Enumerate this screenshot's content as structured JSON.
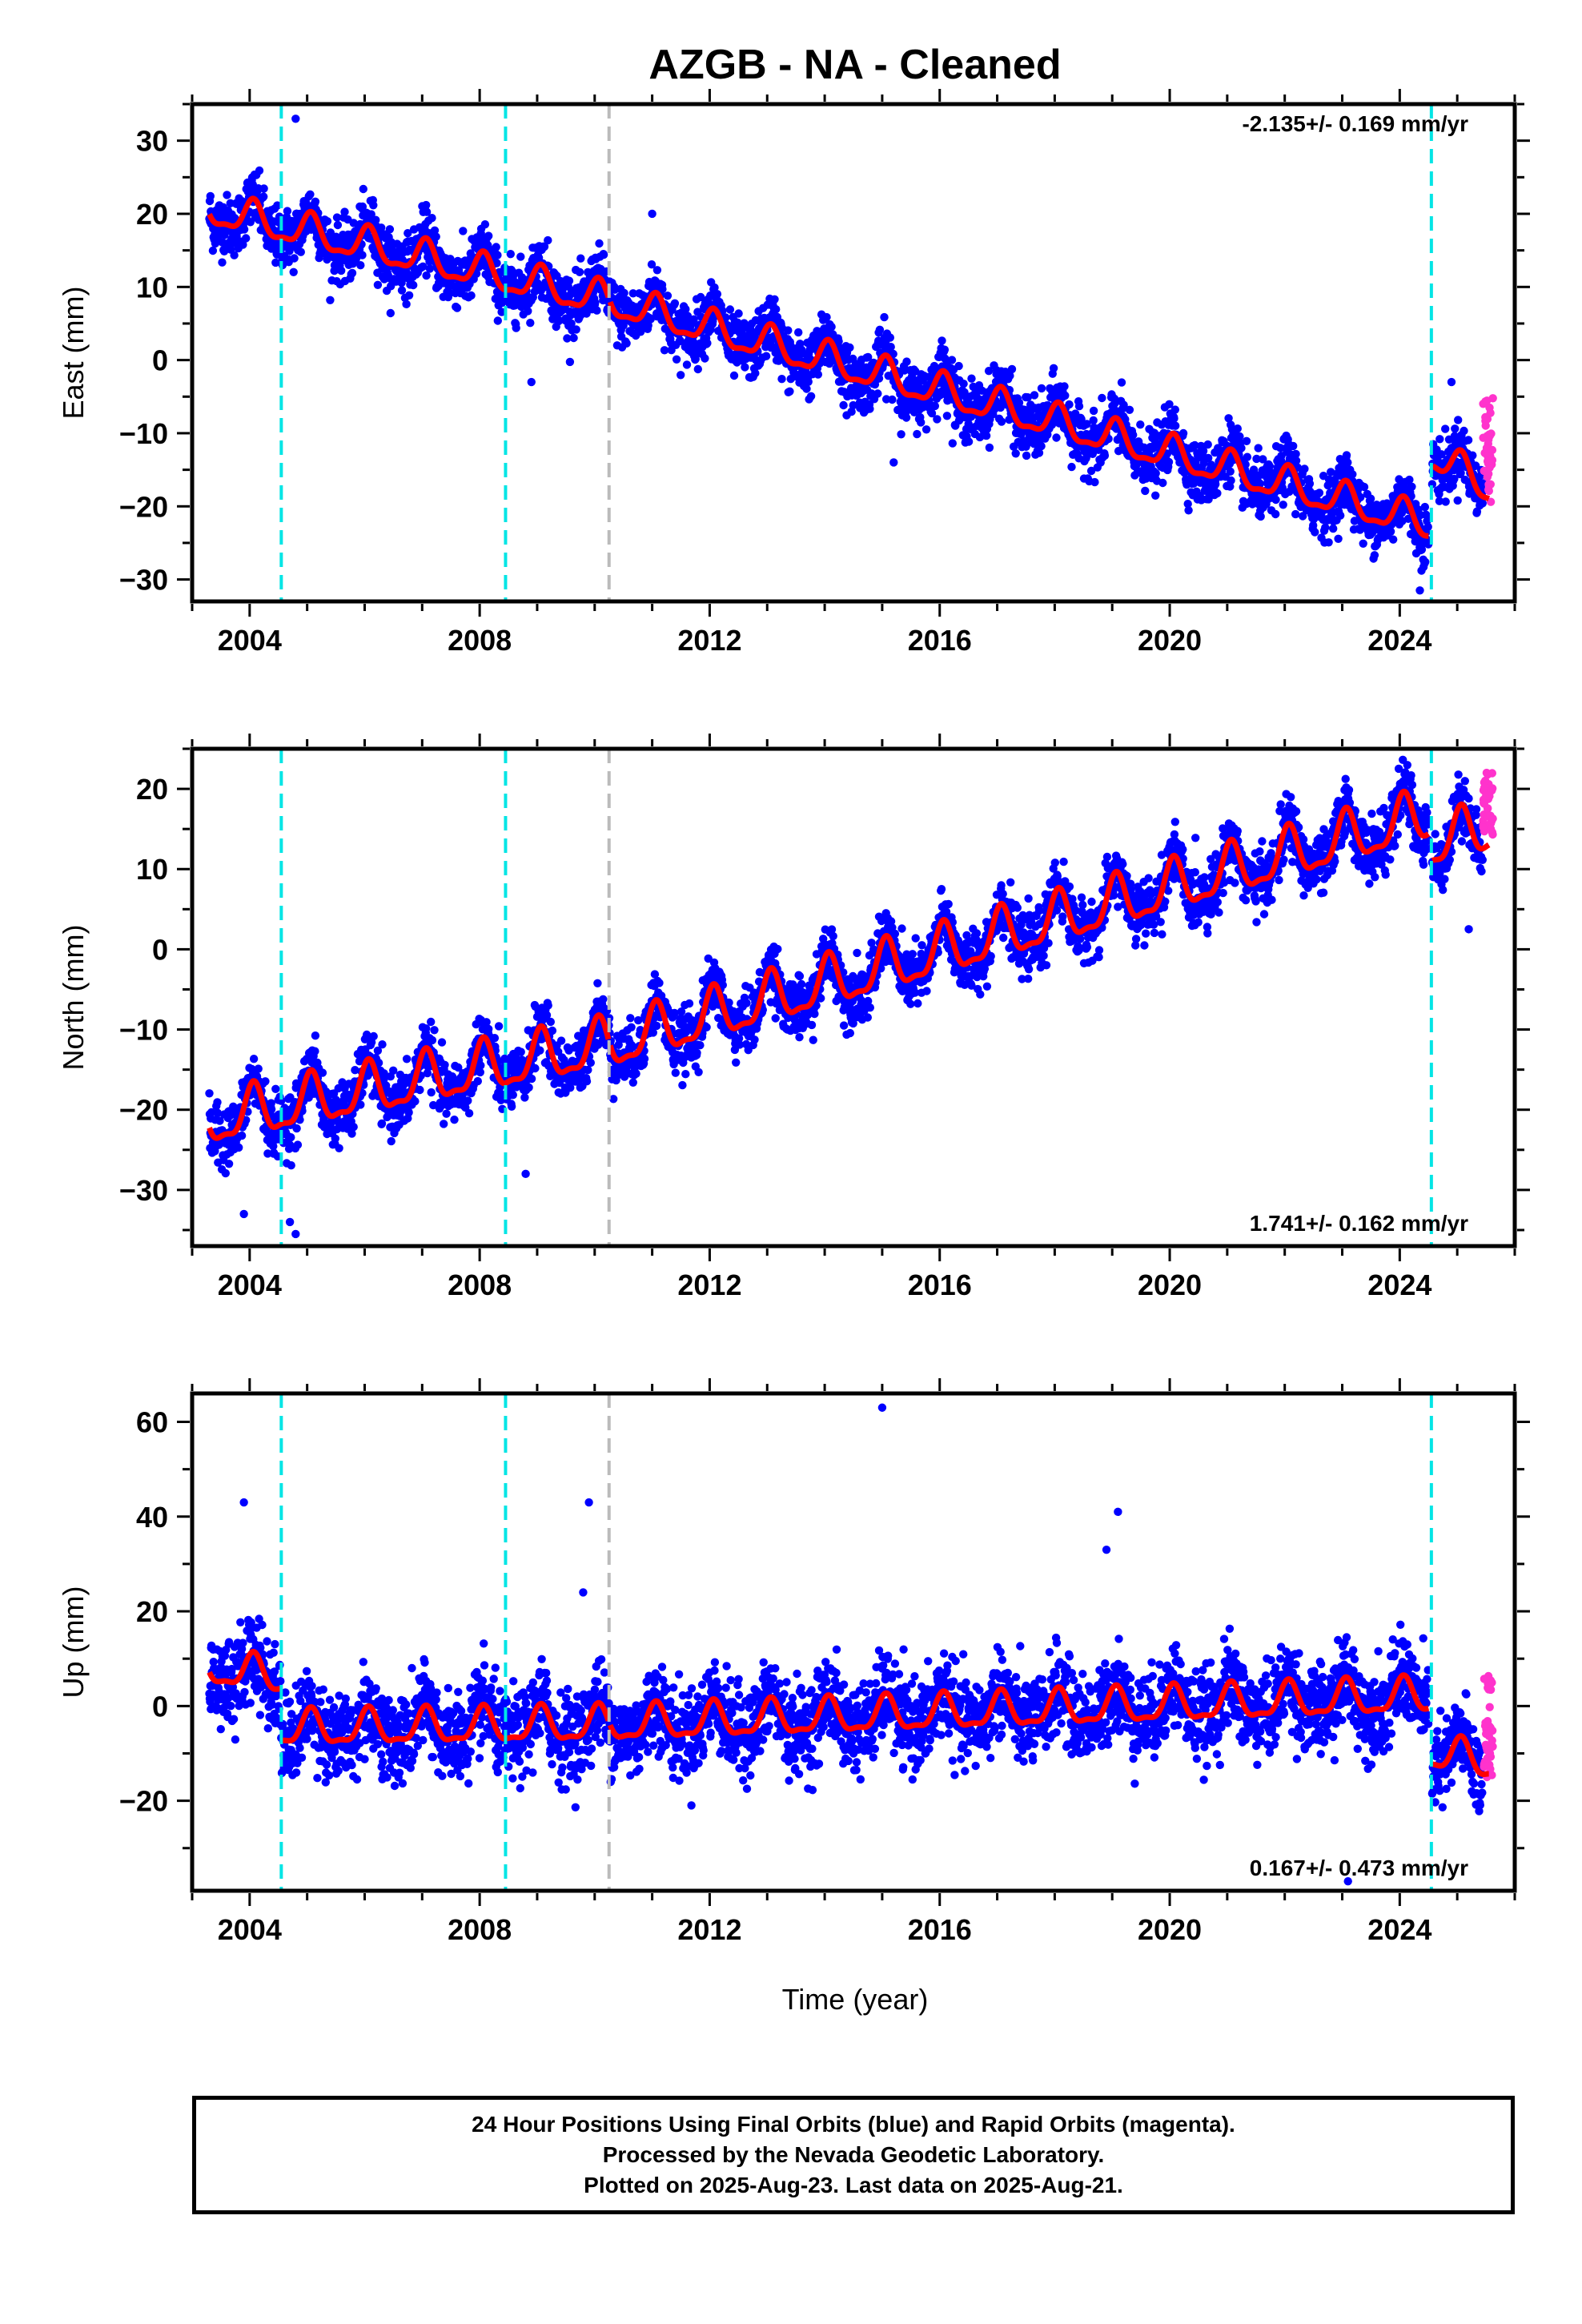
{
  "title": "AZGB  - NA - Cleaned",
  "xlabel": "Time (year)",
  "colors": {
    "final_orbits": "#0000ff",
    "rapid_orbits": "#ff33cc",
    "model": "#ff0000",
    "equipment_change": "#00e5e5",
    "other_event": "#bbbbbb"
  },
  "chart_data": [
    {
      "type": "scatter",
      "name": "east",
      "ylabel": "East (mm)",
      "rate_text": "-2.135+/- 0.169 mm/yr",
      "rate_position": "top-right",
      "xlim": [
        2003.0,
        2026.0
      ],
      "ylim": [
        -33,
        35
      ],
      "xticks": [
        2004,
        2008,
        2012,
        2016,
        2020,
        2024
      ],
      "yticks": [
        30,
        20,
        10,
        0,
        -10,
        -20,
        -30
      ],
      "grid": false,
      "vlines": [
        {
          "x": 2004.55,
          "kind": "equipment_change"
        },
        {
          "x": 2008.45,
          "kind": "equipment_change"
        },
        {
          "x": 2010.25,
          "kind": "other_event"
        },
        {
          "x": 2024.55,
          "kind": "equipment_change"
        }
      ],
      "model_knots": [
        [
          2003.3,
          20.5
        ],
        [
          2010.25,
          8.0
        ],
        [
          2024.5,
          -22.5
        ],
        [
          2024.56,
          -13.0
        ],
        [
          2025.55,
          -17.5
        ]
      ],
      "amplitude": 2.2,
      "scatter_sd": 2.0,
      "rapid_range": [
        2025.45,
        2025.62,
        -20,
        -5
      ],
      "outliers": [
        [
          2004.8,
          33
        ],
        [
          2008.9,
          -3
        ],
        [
          2011.0,
          20
        ],
        [
          2024.35,
          -31.5
        ],
        [
          2024.9,
          -3
        ],
        [
          2015.2,
          -14
        ]
      ]
    },
    {
      "type": "scatter",
      "name": "north",
      "ylabel": "North (mm)",
      "rate_text": "1.741+/- 0.162 mm/yr",
      "rate_position": "bottom-right",
      "xlim": [
        2003.0,
        2026.0
      ],
      "ylim": [
        -37,
        25
      ],
      "xticks": [
        2004,
        2008,
        2012,
        2016,
        2020,
        2024
      ],
      "yticks": [
        20,
        10,
        0,
        -10,
        -20,
        -30
      ],
      "grid": false,
      "vlines": [
        {
          "x": 2004.55,
          "kind": "equipment_change"
        },
        {
          "x": 2008.45,
          "kind": "equipment_change"
        },
        {
          "x": 2010.25,
          "kind": "other_event"
        },
        {
          "x": 2024.55,
          "kind": "equipment_change"
        }
      ],
      "model_knots": [
        [
          2003.3,
          -21.5
        ],
        [
          2010.25,
          -12.0
        ],
        [
          2024.5,
          16.5
        ],
        [
          2024.56,
          13.0
        ],
        [
          2025.55,
          15.0
        ]
      ],
      "amplitude": 3.0,
      "scatter_sd": 1.8,
      "rapid_range": [
        2025.45,
        2025.62,
        14,
        22
      ],
      "outliers": [
        [
          2003.9,
          -33
        ],
        [
          2004.7,
          -34
        ],
        [
          2004.8,
          -35.5
        ],
        [
          2008.8,
          -28
        ],
        [
          2025.2,
          2.5
        ]
      ]
    },
    {
      "type": "scatter",
      "name": "up",
      "ylabel": "Up (mm)",
      "rate_text": "0.167+/- 0.473 mm/yr",
      "rate_position": "bottom-right",
      "xlim": [
        2003.0,
        2026.0
      ],
      "ylim": [
        -39,
        66
      ],
      "xticks": [
        2004,
        2008,
        2012,
        2016,
        2020,
        2024
      ],
      "yticks": [
        60,
        40,
        20,
        0,
        -20
      ],
      "grid": false,
      "vlines": [
        {
          "x": 2004.55,
          "kind": "equipment_change"
        },
        {
          "x": 2008.45,
          "kind": "equipment_change"
        },
        {
          "x": 2010.25,
          "kind": "other_event"
        },
        {
          "x": 2024.55,
          "kind": "equipment_change"
        }
      ],
      "model_knots": [
        [
          2003.3,
          8.0
        ],
        [
          2004.54,
          6.0
        ],
        [
          2004.56,
          -5.0
        ],
        [
          2010.25,
          -4.0
        ],
        [
          2024.5,
          2.0
        ],
        [
          2024.56,
          -10.0
        ],
        [
          2025.55,
          -12.0
        ]
      ],
      "amplitude": 3.5,
      "scatter_sd": 4.5,
      "rapid_range": [
        2025.45,
        2025.62,
        -16,
        7
      ],
      "outliers": [
        [
          2015.0,
          63
        ],
        [
          2003.9,
          43
        ],
        [
          2009.9,
          43
        ],
        [
          2019.1,
          41
        ],
        [
          2018.9,
          33
        ],
        [
          2009.8,
          24
        ],
        [
          2023.1,
          -37
        ]
      ]
    }
  ],
  "footer": {
    "line1": "24 Hour Positions Using Final Orbits (blue) and Rapid Orbits (magenta).",
    "line2": "Processed by the Nevada Geodetic Laboratory.",
    "line3": "Plotted on 2025-Aug-23. Last data on 2025-Aug-21."
  }
}
